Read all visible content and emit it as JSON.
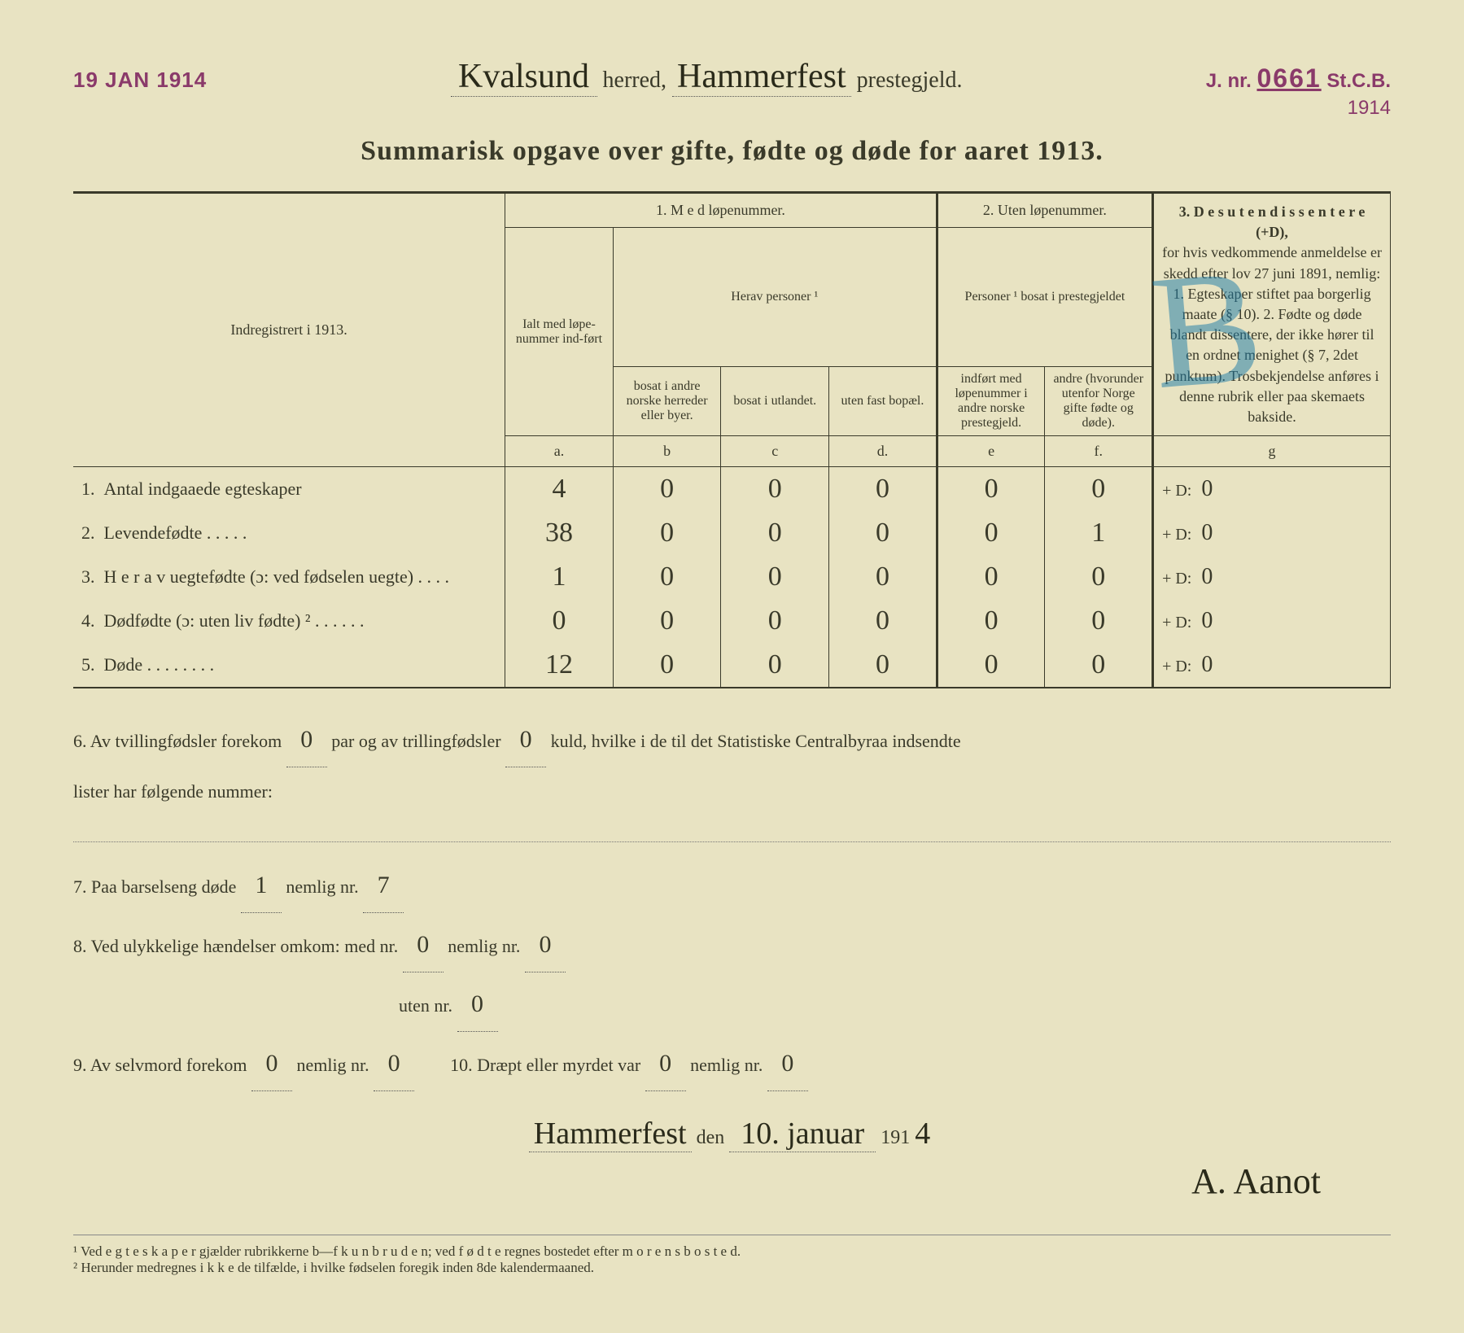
{
  "stamps": {
    "left_date": "19 JAN 1914",
    "right_jnr_label": "J. nr.",
    "right_jnr_num": "0661",
    "right_suffix": "St.C.B.",
    "right_year": "1914"
  },
  "header": {
    "herred_value": "Kvalsund",
    "herred_label": "herred,",
    "prestegjeld_value": "Hammerfest",
    "prestegjeld_label": "prestegjeld."
  },
  "title": "Summarisk opgave over gifte, fødte og døde for aaret 1913.",
  "columns": {
    "indreg": "Indregistrert i 1913.",
    "sec1": "1.  M e d  løpenummer.",
    "sec2": "2. Uten løpenummer.",
    "sec3": "3.  D e s u t e n   d i s s e n t e r e (+D),",
    "ialt": "Ialt med løpe-nummer ind-ført",
    "herav": "Herav personer ¹",
    "b": "bosat i andre norske herreder eller byer.",
    "c": "bosat i utlandet.",
    "d": "uten fast bopæl.",
    "pers2": "Personer ¹ bosat i prestegjeldet",
    "e": "indført med løpenummer i andre norske prestegjeld.",
    "f": "andre (hvorunder utenfor Norge gifte fødte og døde).",
    "g_body": "for hvis vedkommende anmeldelse er skedd efter lov 27 juni 1891, nemlig: 1. Egteskaper stiftet paa borgerlig maate (§ 10). 2. Fødte og døde blandt dissentere, der ikke hører til en ordnet menighet (§ 7, 2det punktum). Trosbekjendelse anføres i denne rubrik eller paa skemaets bakside.",
    "la": "a.",
    "lb": "b",
    "lc": "c",
    "ld": "d.",
    "le": "e",
    "lf": "f.",
    "lg": "g"
  },
  "rows": [
    {
      "num": "1.",
      "label": "Antal indgaaede egteskaper",
      "a": "4",
      "b": "0",
      "c": "0",
      "d": "0",
      "e": "0",
      "f": "0",
      "g": "0"
    },
    {
      "num": "2.",
      "label": "Levendefødte  .  .  .  .  .",
      "a": "38",
      "b": "0",
      "c": "0",
      "d": "0",
      "e": "0",
      "f": "1",
      "g": "0"
    },
    {
      "num": "3.",
      "label": "H e r a v  uegtefødte (ɔ: ved fødselen uegte)  .  .  .  .",
      "a": "1",
      "b": "0",
      "c": "0",
      "d": "0",
      "e": "0",
      "f": "0",
      "g": "0"
    },
    {
      "num": "4.",
      "label": "Dødfødte (ɔ: uten liv fødte) ²  .  .  .  .  .  .",
      "a": "0",
      "b": "0",
      "c": "0",
      "d": "0",
      "e": "0",
      "f": "0",
      "g": "0"
    },
    {
      "num": "5.",
      "label": "Døde  .  .  .  .  .  .  .  .",
      "a": "12",
      "b": "0",
      "c": "0",
      "d": "0",
      "e": "0",
      "f": "0",
      "g": "0"
    }
  ],
  "lower": {
    "l6a": "6.   Av tvillingfødsler forekom",
    "l6_twin": "0",
    "l6b": "par og av trillingfødsler",
    "l6_trip": "0",
    "l6c": "kuld, hvilke i de til det Statistiske Centralbyraa indsendte",
    "l6d": "lister har følgende nummer:",
    "l7a": "7.   Paa barselseng døde",
    "l7_v1": "1",
    "l7b": "nemlig nr.",
    "l7_v2": "7",
    "l8a": "8.   Ved ulykkelige hændelser omkom: med nr.",
    "l8_v1": "0",
    "l8b": "nemlig nr.",
    "l8_v2": "0",
    "l8c": "uten nr.",
    "l8_v3": "0",
    "l9a": "9.   Av selvmord forekom",
    "l9_v1": "0",
    "l9b": "nemlig nr.",
    "l9_v2": "0",
    "l10a": "10.   Dræpt eller myrdet var",
    "l10_v1": "0",
    "l10b": "nemlig nr.",
    "l10_v2": "0"
  },
  "signature": {
    "place": "Hammerfest",
    "den": "den",
    "date": "10. januar",
    "yearprefix": "191",
    "yeardigit": "4",
    "name": "A. Aanot"
  },
  "footnotes": {
    "f1": "¹ Ved e g t e s k a p e r gjælder rubrikkerne b—f  k u n  b r u d e n; ved f ø d t e regnes bostedet efter m o r e n s  b o s t e d.",
    "f2": "² Herunder medregnes i k k e de tilfælde, i hvilke fødselen foregik inden 8de kalendermaaned."
  },
  "overlay": "B"
}
